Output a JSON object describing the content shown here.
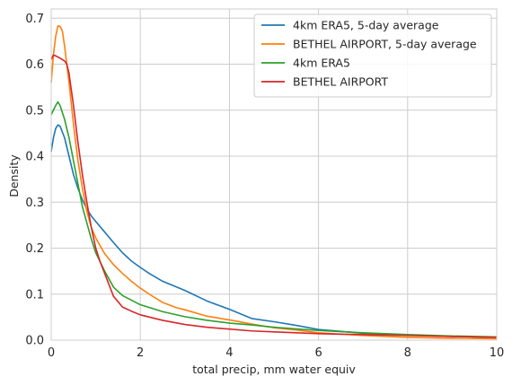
{
  "chart_data": {
    "type": "line",
    "title": "",
    "xlabel": "total precip, mm water equiv",
    "ylabel": "Density",
    "xlim": [
      0,
      10
    ],
    "ylim": [
      0,
      0.72
    ],
    "xticks": [
      0,
      2,
      4,
      6,
      8,
      10
    ],
    "yticks": [
      0.0,
      0.1,
      0.2,
      0.3,
      0.4,
      0.5,
      0.6,
      0.7
    ],
    "xtick_labels": [
      "0",
      "2",
      "4",
      "6",
      "8",
      "10"
    ],
    "ytick_labels": [
      "0.0",
      "0.1",
      "0.2",
      "0.3",
      "0.4",
      "0.5",
      "0.6",
      "0.7"
    ],
    "grid": true,
    "legend_position": "top-right",
    "series": [
      {
        "name": "4km ERA5, 5-day average",
        "color": "#1f77b4",
        "x": [
          0,
          0.05,
          0.1,
          0.15,
          0.2,
          0.3,
          0.4,
          0.5,
          0.6,
          0.7,
          0.8,
          0.9,
          1.0,
          1.2,
          1.4,
          1.6,
          1.8,
          2.0,
          2.2,
          2.5,
          2.8,
          3.0,
          3.5,
          4.0,
          4.5,
          5.0,
          5.5,
          6.0,
          7.0,
          8.0,
          9.0,
          10.0
        ],
        "y": [
          0.41,
          0.44,
          0.46,
          0.468,
          0.465,
          0.44,
          0.4,
          0.36,
          0.33,
          0.305,
          0.285,
          0.27,
          0.258,
          0.235,
          0.212,
          0.19,
          0.172,
          0.158,
          0.145,
          0.128,
          0.116,
          0.108,
          0.085,
          0.067,
          0.047,
          0.04,
          0.032,
          0.023,
          0.015,
          0.011,
          0.008,
          0.006
        ]
      },
      {
        "name": "BETHEL AIRPORT, 5-day average",
        "color": "#ff7f0e",
        "x": [
          0,
          0.05,
          0.1,
          0.15,
          0.2,
          0.25,
          0.3,
          0.4,
          0.5,
          0.6,
          0.7,
          0.8,
          0.9,
          1.0,
          1.2,
          1.4,
          1.6,
          1.8,
          2.0,
          2.2,
          2.5,
          2.8,
          3.0,
          3.5,
          4.0,
          4.5,
          5.0,
          5.5,
          6.0,
          7.0,
          8.0,
          9.0,
          10.0
        ],
        "y": [
          0.56,
          0.62,
          0.66,
          0.683,
          0.682,
          0.672,
          0.64,
          0.56,
          0.47,
          0.39,
          0.33,
          0.28,
          0.245,
          0.222,
          0.188,
          0.164,
          0.145,
          0.128,
          0.113,
          0.1,
          0.082,
          0.071,
          0.066,
          0.052,
          0.044,
          0.035,
          0.027,
          0.022,
          0.016,
          0.01,
          0.006,
          0.004,
          0.003
        ]
      },
      {
        "name": "4km ERA5",
        "color": "#2ca02c",
        "x": [
          0,
          0.05,
          0.1,
          0.15,
          0.2,
          0.3,
          0.4,
          0.5,
          0.6,
          0.7,
          0.8,
          0.9,
          1.0,
          1.2,
          1.4,
          1.6,
          1.8,
          2.0,
          2.5,
          3.0,
          3.5,
          4.0,
          4.5,
          5.0,
          6.0,
          7.0,
          8.0,
          9.0,
          10.0
        ],
        "y": [
          0.49,
          0.5,
          0.51,
          0.518,
          0.51,
          0.48,
          0.44,
          0.39,
          0.34,
          0.29,
          0.255,
          0.22,
          0.19,
          0.15,
          0.115,
          0.097,
          0.087,
          0.077,
          0.062,
          0.051,
          0.043,
          0.037,
          0.033,
          0.028,
          0.021,
          0.016,
          0.012,
          0.009,
          0.007
        ]
      },
      {
        "name": "BETHEL AIRPORT",
        "color": "#d62728",
        "x": [
          0,
          0.05,
          0.1,
          0.2,
          0.3,
          0.35,
          0.4,
          0.5,
          0.6,
          0.7,
          0.8,
          0.9,
          1.0,
          1.1,
          1.2,
          1.4,
          1.6,
          1.8,
          2.0,
          2.5,
          3.0,
          3.5,
          4.0,
          4.5,
          5.0,
          6.0,
          7.0,
          8.0,
          9.0,
          10.0
        ],
        "y": [
          0.61,
          0.62,
          0.618,
          0.613,
          0.607,
          0.6,
          0.58,
          0.51,
          0.43,
          0.36,
          0.3,
          0.245,
          0.2,
          0.17,
          0.145,
          0.095,
          0.072,
          0.063,
          0.055,
          0.043,
          0.034,
          0.028,
          0.024,
          0.02,
          0.018,
          0.014,
          0.012,
          0.01,
          0.008,
          0.006
        ]
      }
    ]
  }
}
